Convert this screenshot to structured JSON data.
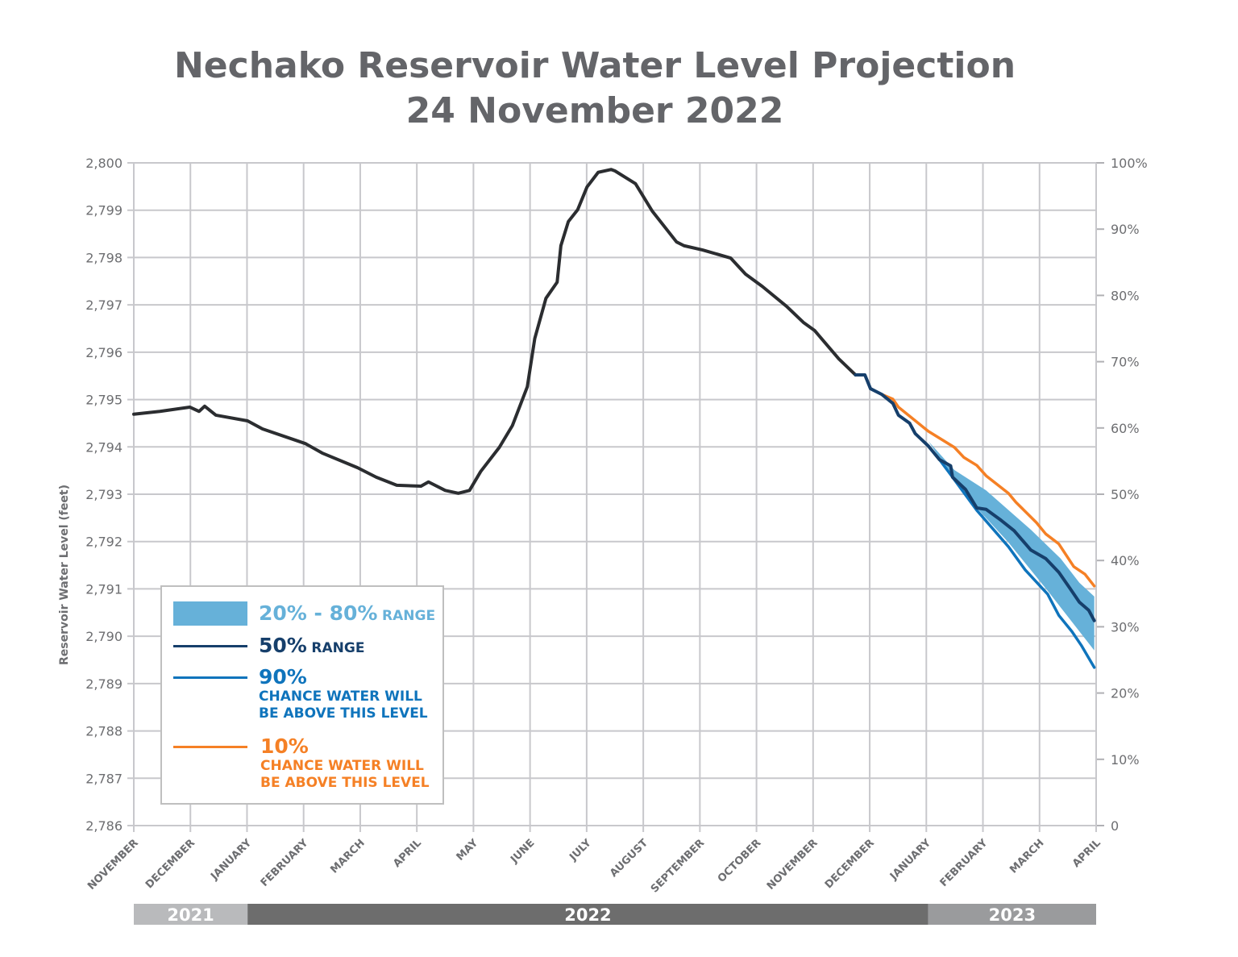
{
  "chart_data": {
    "type": "line",
    "title": "Nechako Reservoir Water Level Projection",
    "subtitle": "24 November 2022",
    "ylabel": "Reservoir Water Level (feet)",
    "ylim": [
      2786,
      2800
    ],
    "y_ticks": [
      "2,786",
      "2,787",
      "2,788",
      "2,789",
      "2,790",
      "2,791",
      "2,792",
      "2,793",
      "2,794",
      "2,795",
      "2,796",
      "2,797",
      "2,798",
      "2,799",
      "2,800"
    ],
    "y2lim": [
      0,
      100
    ],
    "y2_ticks": [
      "0",
      "10%",
      "20%",
      "30%",
      "40%",
      "50%",
      "60%",
      "70%",
      "80%",
      "90%",
      "100%"
    ],
    "xlim": [
      "2021-11-01",
      "2023-04-01"
    ],
    "x_ticks": [
      "NOVEMBER",
      "DECEMBER",
      "JANUARY",
      "FEBRUARY",
      "MARCH",
      "APRIL",
      "MAY",
      "JUNE",
      "JULY",
      "AUGUST",
      "SEPTEMBER",
      "OCTOBER",
      "NOVEMBER",
      "DECEMBER",
      "JANUARY",
      "FEBRUARY",
      "MARCH",
      "APRIL"
    ],
    "years": [
      {
        "label": "2021",
        "from": "2021-11-01",
        "to": "2022-01-01",
        "color": "#b9babc"
      },
      {
        "label": "2022",
        "from": "2022-01-01",
        "to": "2023-01-01",
        "color": "#6d6d6d"
      },
      {
        "label": "2023",
        "from": "2023-01-01",
        "to": "2023-04-01",
        "color": "#9a9b9d"
      }
    ],
    "grid": true,
    "legend_placement": "bottom-left",
    "historical": {
      "color": "#2b2d30",
      "points": [
        [
          "2021-11-01",
          2794.69
        ],
        [
          "2021-11-15",
          2794.75
        ],
        [
          "2021-12-01",
          2794.84
        ],
        [
          "2021-12-06",
          2794.75
        ],
        [
          "2021-12-09",
          2794.86
        ],
        [
          "2021-12-15",
          2794.67
        ],
        [
          "2022-01-01",
          2794.55
        ],
        [
          "2022-01-09",
          2794.38
        ],
        [
          "2022-02-01",
          2794.07
        ],
        [
          "2022-02-10",
          2793.87
        ],
        [
          "2022-03-01",
          2793.56
        ],
        [
          "2022-03-11",
          2793.36
        ],
        [
          "2022-03-22",
          2793.19
        ],
        [
          "2022-04-04",
          2793.17
        ],
        [
          "2022-04-08",
          2793.26
        ],
        [
          "2022-04-17",
          2793.08
        ],
        [
          "2022-04-24",
          2793.02
        ],
        [
          "2022-04-30",
          2793.08
        ],
        [
          "2022-05-06",
          2793.48
        ],
        [
          "2022-05-16",
          2793.99
        ],
        [
          "2022-05-23",
          2794.45
        ],
        [
          "2022-05-31",
          2795.27
        ],
        [
          "2022-06-04",
          2796.29
        ],
        [
          "2022-06-10",
          2797.14
        ],
        [
          "2022-06-16",
          2797.48
        ],
        [
          "2022-06-18",
          2798.25
        ],
        [
          "2022-06-22",
          2798.76
        ],
        [
          "2022-06-27",
          2799.01
        ],
        [
          "2022-07-02",
          2799.49
        ],
        [
          "2022-07-08",
          2799.8
        ],
        [
          "2022-07-15",
          2799.86
        ],
        [
          "2022-07-17",
          2799.83
        ],
        [
          "2022-07-28",
          2799.56
        ],
        [
          "2022-08-06",
          2798.98
        ],
        [
          "2022-08-19",
          2798.33
        ],
        [
          "2022-08-23",
          2798.25
        ],
        [
          "2022-09-02",
          2798.16
        ],
        [
          "2022-09-17",
          2797.99
        ],
        [
          "2022-09-25",
          2797.65
        ],
        [
          "2022-10-04",
          2797.39
        ],
        [
          "2022-10-17",
          2796.97
        ],
        [
          "2022-10-26",
          2796.63
        ],
        [
          "2022-11-01",
          2796.46
        ],
        [
          "2022-11-14",
          2795.86
        ],
        [
          "2022-11-23",
          2795.52
        ]
      ]
    },
    "band": {
      "name": "20% - 80% RANGE",
      "color": "#66b1d9",
      "upper": [
        [
          "2023-01-01",
          2794.12
        ],
        [
          "2023-01-15",
          2793.51
        ],
        [
          "2023-02-01",
          2793.08
        ],
        [
          "2023-02-25",
          2792.25
        ],
        [
          "2023-03-13",
          2791.64
        ],
        [
          "2023-03-23",
          2791.13
        ],
        [
          "2023-03-31",
          2790.84
        ]
      ],
      "lower": [
        [
          "2023-01-01",
          2794.12
        ],
        [
          "2023-01-14",
          2793.36
        ],
        [
          "2023-01-27",
          2792.71
        ],
        [
          "2023-02-13",
          2791.98
        ],
        [
          "2023-03-06",
          2790.96
        ],
        [
          "2023-03-31",
          2789.7
        ]
      ]
    },
    "series": [
      {
        "name": "50% RANGE",
        "color": "#163f6b",
        "points": [
          [
            "2022-11-23",
            2795.52
          ],
          [
            "2022-11-28",
            2795.52
          ],
          [
            "2022-12-01",
            2795.23
          ],
          [
            "2022-12-07",
            2795.11
          ],
          [
            "2022-12-13",
            2794.92
          ],
          [
            "2022-12-16",
            2794.67
          ],
          [
            "2022-12-22",
            2794.5
          ],
          [
            "2022-12-25",
            2794.28
          ],
          [
            "2023-01-01",
            2794.02
          ],
          [
            "2023-01-07",
            2793.73
          ],
          [
            "2023-01-13",
            2793.6
          ],
          [
            "2023-01-14",
            2793.36
          ],
          [
            "2023-01-21",
            2793.1
          ],
          [
            "2023-01-27",
            2792.71
          ],
          [
            "2023-02-01",
            2792.68
          ],
          [
            "2023-02-09",
            2792.45
          ],
          [
            "2023-02-16",
            2792.23
          ],
          [
            "2023-02-25",
            2791.82
          ],
          [
            "2023-03-05",
            2791.64
          ],
          [
            "2023-03-12",
            2791.35
          ],
          [
            "2023-03-18",
            2791.01
          ],
          [
            "2023-03-23",
            2790.72
          ],
          [
            "2023-03-28",
            2790.55
          ],
          [
            "2023-03-31",
            2790.33
          ]
        ]
      },
      {
        "name": "90%",
        "note": "CHANCE WATER WILL BE ABOVE THIS LEVEL",
        "color": "#0f74bc",
        "points": [
          [
            "2022-11-23",
            2795.52
          ],
          [
            "2022-11-28",
            2795.52
          ],
          [
            "2022-12-01",
            2795.23
          ],
          [
            "2022-12-07",
            2795.11
          ],
          [
            "2022-12-13",
            2794.92
          ],
          [
            "2022-12-16",
            2794.67
          ],
          [
            "2022-12-22",
            2794.5
          ],
          [
            "2022-12-25",
            2794.28
          ],
          [
            "2023-01-01",
            2794.02
          ],
          [
            "2023-01-07",
            2793.73
          ],
          [
            "2023-01-14",
            2793.36
          ],
          [
            "2023-01-27",
            2792.66
          ],
          [
            "2023-02-13",
            2791.89
          ],
          [
            "2023-02-22",
            2791.4
          ],
          [
            "2023-03-06",
            2790.89
          ],
          [
            "2023-03-12",
            2790.44
          ],
          [
            "2023-03-19",
            2790.1
          ],
          [
            "2023-03-24",
            2789.81
          ],
          [
            "2023-03-31",
            2789.34
          ]
        ]
      },
      {
        "name": "10%",
        "note": "CHANCE WATER WILL BE ABOVE THIS LEVEL",
        "color": "#f58025",
        "points": [
          [
            "2022-12-07",
            2795.11
          ],
          [
            "2022-12-13",
            2795.01
          ],
          [
            "2022-12-16",
            2794.84
          ],
          [
            "2023-01-01",
            2794.33
          ],
          [
            "2023-01-15",
            2793.99
          ],
          [
            "2023-01-20",
            2793.78
          ],
          [
            "2023-01-27",
            2793.61
          ],
          [
            "2023-02-01",
            2793.39
          ],
          [
            "2023-02-13",
            2793.02
          ],
          [
            "2023-02-17",
            2792.83
          ],
          [
            "2023-02-28",
            2792.4
          ],
          [
            "2023-03-05",
            2792.16
          ],
          [
            "2023-03-12",
            2791.95
          ],
          [
            "2023-03-20",
            2791.47
          ],
          [
            "2023-03-26",
            2791.31
          ],
          [
            "2023-03-31",
            2791.06
          ]
        ]
      }
    ]
  },
  "legend": {
    "band_pct": "20% - 80%",
    "band_word": "RANGE",
    "median_pct": "50%",
    "median_word": "RANGE",
    "p90_pct": "90%",
    "p90_line1": "CHANCE WATER WILL",
    "p90_line2": "BE ABOVE THIS LEVEL",
    "p10_pct": "10%",
    "p10_line1": "CHANCE WATER WILL",
    "p10_line2": "BE ABOVE THIS LEVEL"
  }
}
